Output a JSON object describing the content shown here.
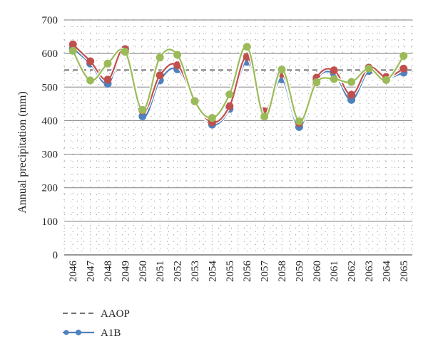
{
  "chart_data": {
    "type": "line",
    "ylabel": "Annual precipitation (mm)",
    "xlabel": "",
    "ylim": [
      0,
      700
    ],
    "yticks": [
      0,
      100,
      200,
      300,
      400,
      500,
      600,
      700
    ],
    "grid": true,
    "legend_placement": "bottom-left",
    "categories": [
      "2046",
      "2047",
      "2048",
      "2049",
      "2050",
      "2051",
      "2052",
      "2053",
      "2054",
      "2055",
      "2056",
      "2057",
      "2058",
      "2059",
      "2060",
      "2061",
      "2062",
      "2063",
      "2064",
      "2065"
    ],
    "reference_line": {
      "name": "AAOP",
      "value": 551,
      "color": "#231f20"
    },
    "series": [
      {
        "name": "A1B",
        "color": "#4f81bd",
        "values": [
          615,
          570,
          510,
          605,
          413,
          520,
          553,
          458,
          388,
          435,
          575,
          425,
          523,
          381,
          522,
          540,
          462,
          548,
          528,
          543
        ]
      },
      {
        "name": "",
        "color": "#c0504d",
        "values": [
          627,
          577,
          522,
          613,
          430,
          535,
          565,
          458,
          395,
          443,
          590,
          428,
          540,
          393,
          528,
          550,
          477,
          558,
          530,
          555
        ]
      },
      {
        "name": "",
        "color": "#9bbb59",
        "values": [
          608,
          520,
          570,
          605,
          432,
          588,
          596,
          458,
          408,
          478,
          620,
          412,
          552,
          398,
          514,
          524,
          515,
          555,
          521,
          593
        ]
      }
    ]
  }
}
